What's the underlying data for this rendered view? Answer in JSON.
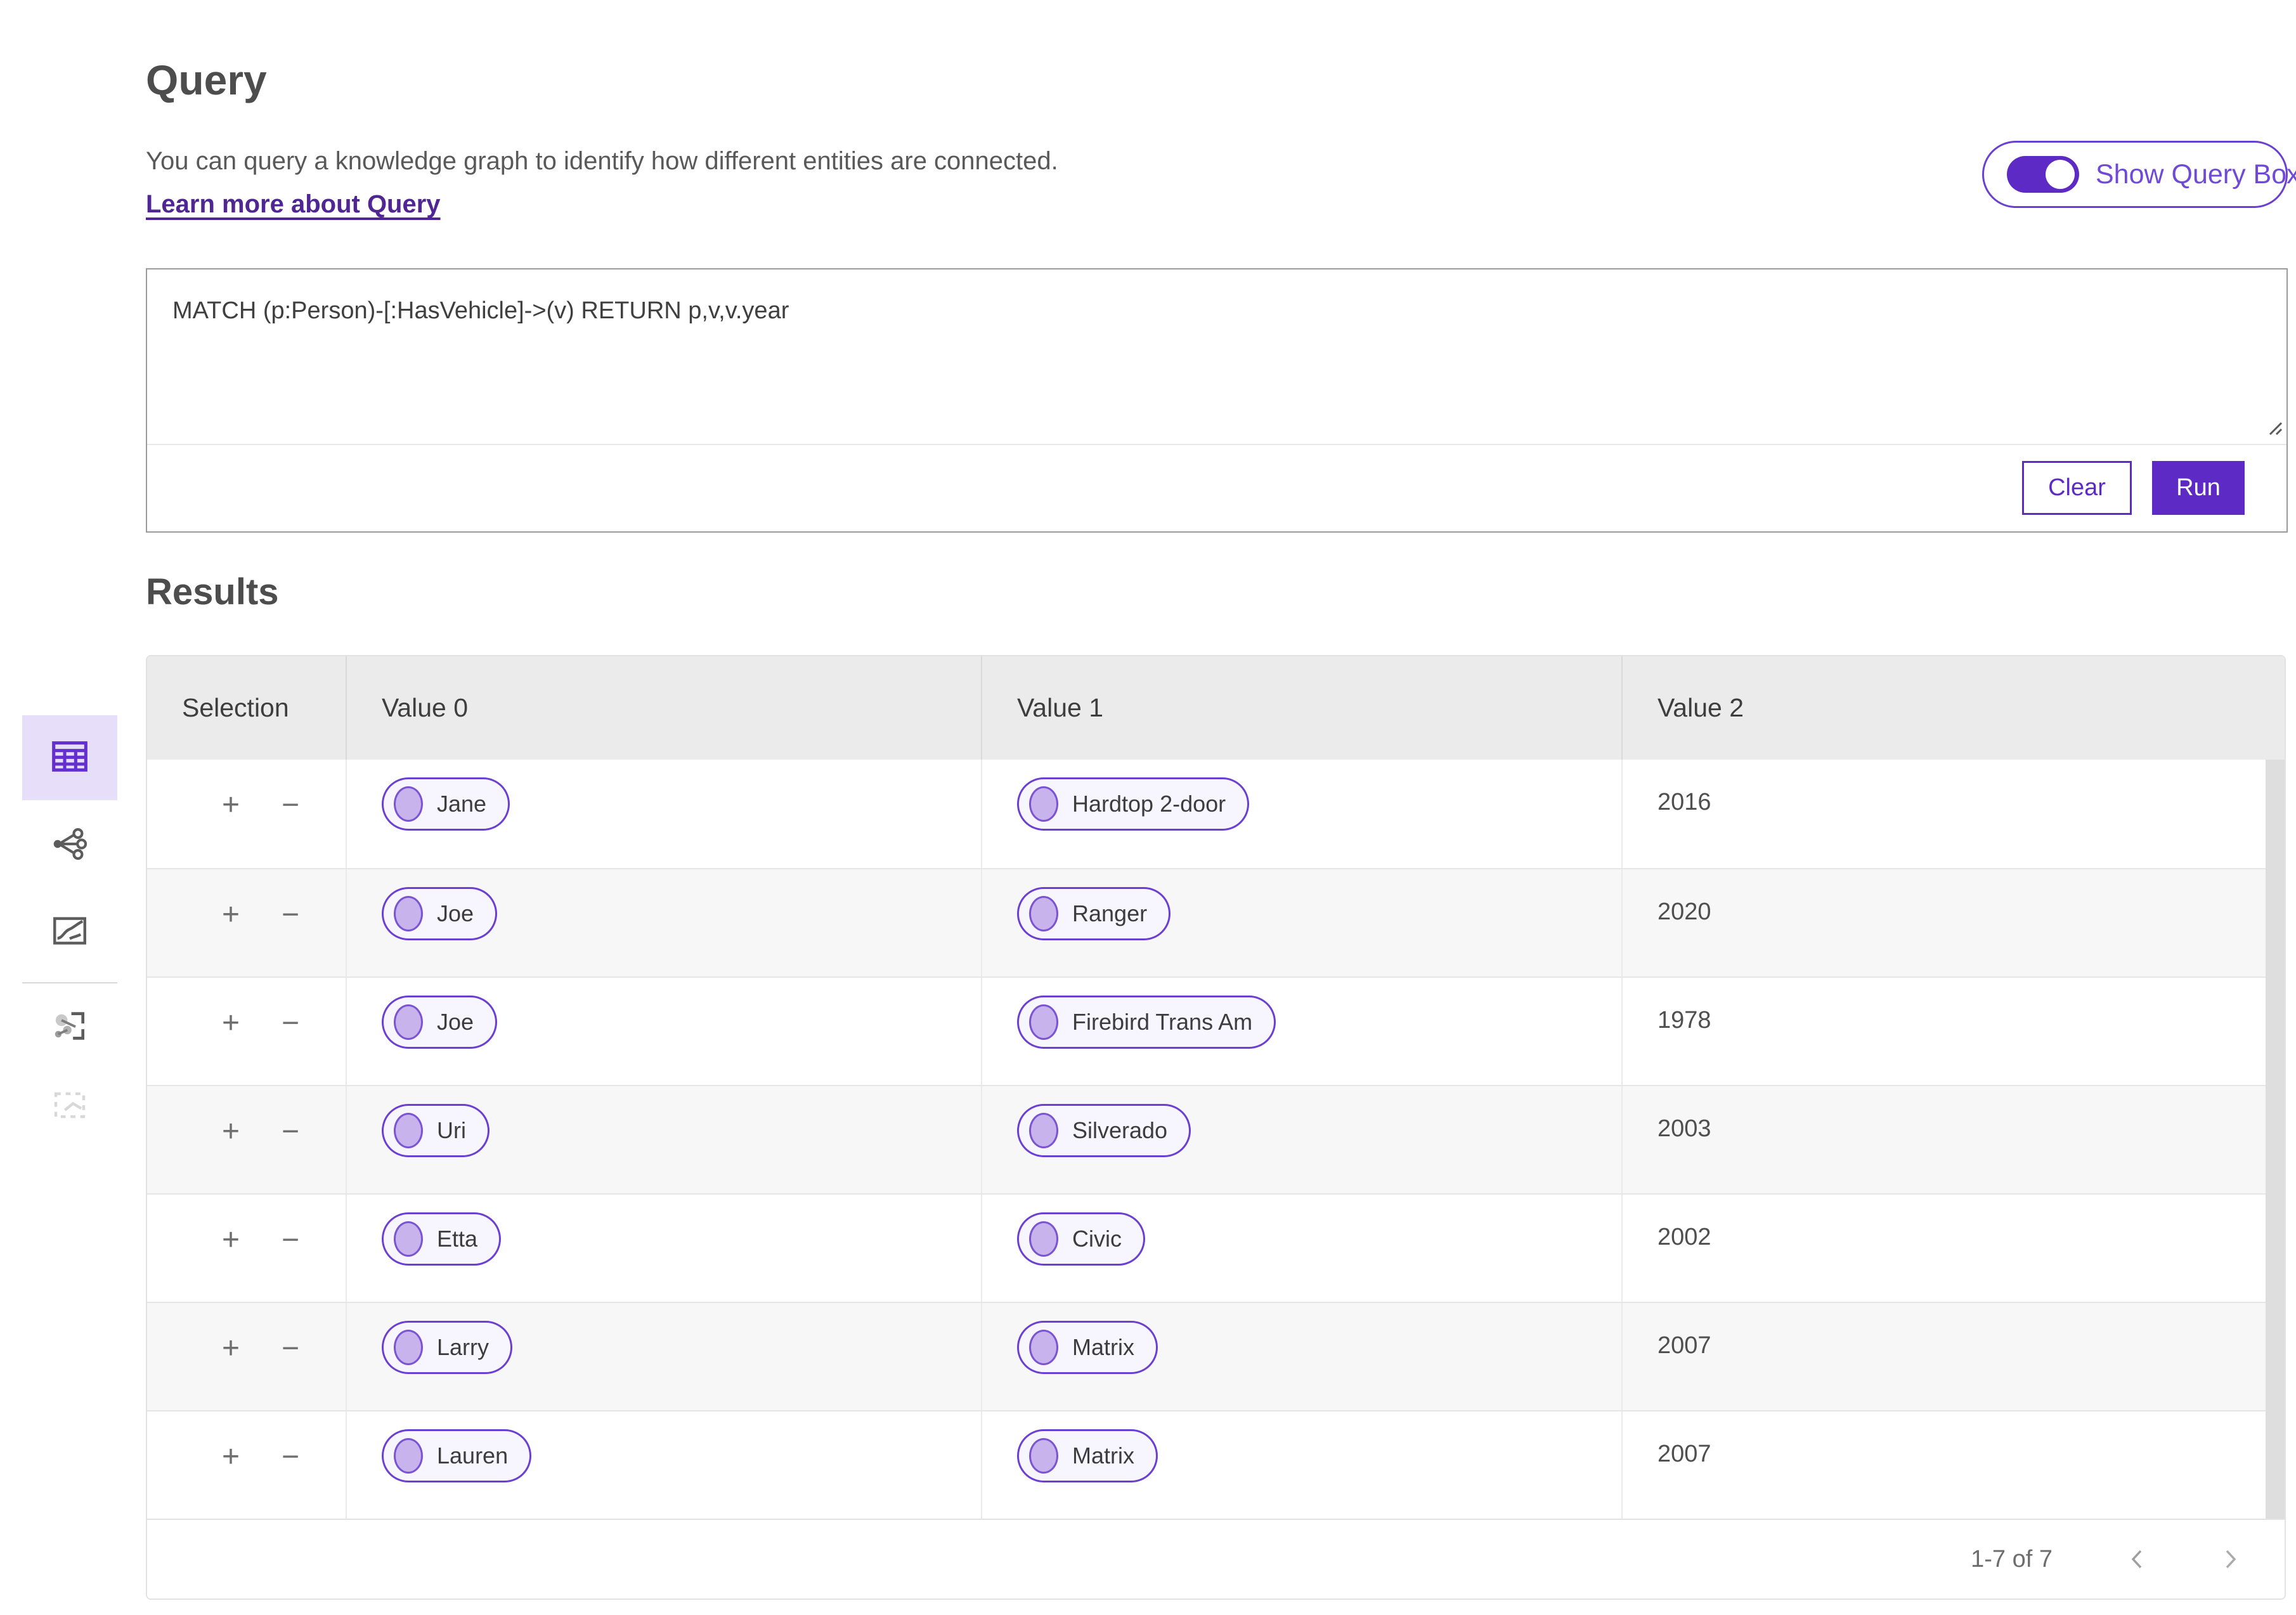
{
  "page": {
    "title": "Query",
    "description": "You can query a knowledge graph to identify how different entities are connected.",
    "learn_more": "Learn more about Query"
  },
  "toggle": {
    "label": "Show Query Box",
    "state": "on"
  },
  "query_editor": {
    "text": "MATCH (p:Person)-[:HasVehicle]->(v) RETURN p,v,v.year",
    "clear_label": "Clear",
    "run_label": "Run"
  },
  "results": {
    "title": "Results",
    "columns": [
      "Selection",
      "Value 0",
      "Value 1",
      "Value 2"
    ],
    "row_controls": {
      "add": "+",
      "remove": "−"
    },
    "rows": [
      {
        "value0": "Jane",
        "value1": "Hardtop 2-door",
        "value2": "2016"
      },
      {
        "value0": "Joe",
        "value1": "Ranger",
        "value2": "2020"
      },
      {
        "value0": "Joe",
        "value1": "Firebird Trans Am",
        "value2": "1978"
      },
      {
        "value0": "Uri",
        "value1": "Silverado",
        "value2": "2003"
      },
      {
        "value0": "Etta",
        "value1": "Civic",
        "value2": "2002"
      },
      {
        "value0": "Larry",
        "value1": "Matrix",
        "value2": "2007"
      },
      {
        "value0": "Lauren",
        "value1": "Matrix",
        "value2": "2007"
      }
    ],
    "pagination": {
      "range": "1-7 of 7"
    }
  },
  "sidebar": {
    "items": [
      {
        "icon": "table-view-icon",
        "state": "active"
      },
      {
        "icon": "graph-view-icon",
        "state": "default"
      },
      {
        "icon": "chart-view-icon",
        "state": "default"
      },
      {
        "icon": "graph-export-icon",
        "state": "default"
      },
      {
        "icon": "selection-box-icon",
        "state": "disabled"
      }
    ]
  },
  "colors": {
    "accent": "#5d2ac5",
    "pill_border": "#6b3fd2",
    "pill_bg": "#f7f5fe",
    "node_fill": "#c8b3ec",
    "header_bg": "#ebebeb",
    "row_alt_bg": "#f7f7f7",
    "link": "#4f2694"
  }
}
